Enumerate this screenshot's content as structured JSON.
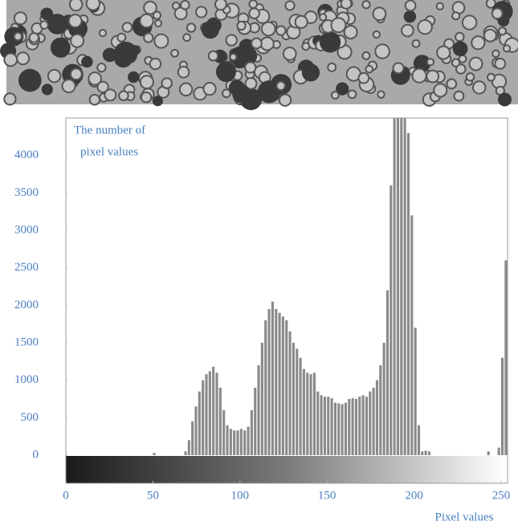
{
  "chart_data": {
    "type": "histogram",
    "y_label_lines": [
      "The number of",
      "pixel values"
    ],
    "x_label": "Pixel values",
    "color": "#8a8a8a",
    "xlim": [
      0,
      255
    ],
    "ylim": [
      0,
      4500
    ],
    "xticks": [
      0,
      50,
      100,
      150,
      200,
      250
    ],
    "yticks": [
      0,
      500,
      1000,
      1500,
      2000,
      2500,
      3000,
      3500,
      4000
    ],
    "bins": [
      0,
      2,
      4,
      6,
      8,
      10,
      12,
      14,
      16,
      18,
      20,
      22,
      24,
      26,
      28,
      30,
      32,
      34,
      36,
      38,
      40,
      42,
      44,
      46,
      48,
      50,
      52,
      54,
      56,
      58,
      60,
      62,
      64,
      66,
      68,
      70,
      72,
      74,
      76,
      78,
      80,
      82,
      84,
      86,
      88,
      90,
      92,
      94,
      96,
      98,
      100,
      102,
      104,
      106,
      108,
      110,
      112,
      114,
      116,
      118,
      120,
      122,
      124,
      126,
      128,
      130,
      132,
      134,
      136,
      138,
      140,
      142,
      144,
      146,
      148,
      150,
      152,
      154,
      156,
      158,
      160,
      162,
      164,
      166,
      168,
      170,
      172,
      174,
      176,
      178,
      180,
      182,
      184,
      186,
      188,
      190,
      192,
      194,
      196,
      198,
      200,
      202,
      204,
      206,
      208,
      210,
      212,
      214,
      216,
      218,
      220,
      222,
      224,
      226,
      228,
      230,
      232,
      234,
      236,
      238,
      240,
      242,
      244,
      246,
      248,
      250,
      252,
      254,
      256
    ],
    "values": [
      0,
      0,
      0,
      0,
      0,
      0,
      0,
      0,
      0,
      0,
      0,
      0,
      0,
      0,
      0,
      0,
      0,
      0,
      0,
      0,
      0,
      0,
      0,
      0,
      0,
      30,
      0,
      0,
      0,
      0,
      0,
      0,
      0,
      0,
      50,
      200,
      450,
      650,
      850,
      1000,
      1080,
      1120,
      1180,
      1100,
      900,
      600,
      400,
      350,
      330,
      330,
      350,
      330,
      380,
      600,
      900,
      1200,
      1500,
      1800,
      1950,
      2050,
      1950,
      1900,
      1850,
      1800,
      1650,
      1500,
      1420,
      1300,
      1150,
      1100,
      1080,
      1100,
      850,
      800,
      780,
      780,
      760,
      700,
      690,
      680,
      700,
      750,
      760,
      750,
      780,
      800,
      780,
      850,
      900,
      1000,
      1200,
      1500,
      2200,
      3600,
      4500,
      4500,
      4500,
      4500,
      4300,
      3200,
      1700,
      400,
      50,
      60,
      50,
      0,
      0,
      0,
      0,
      0,
      0,
      0,
      0,
      0,
      0,
      0,
      0,
      0,
      0,
      0,
      0,
      50,
      0,
      0,
      100,
      1300,
      2600,
      0
    ]
  }
}
